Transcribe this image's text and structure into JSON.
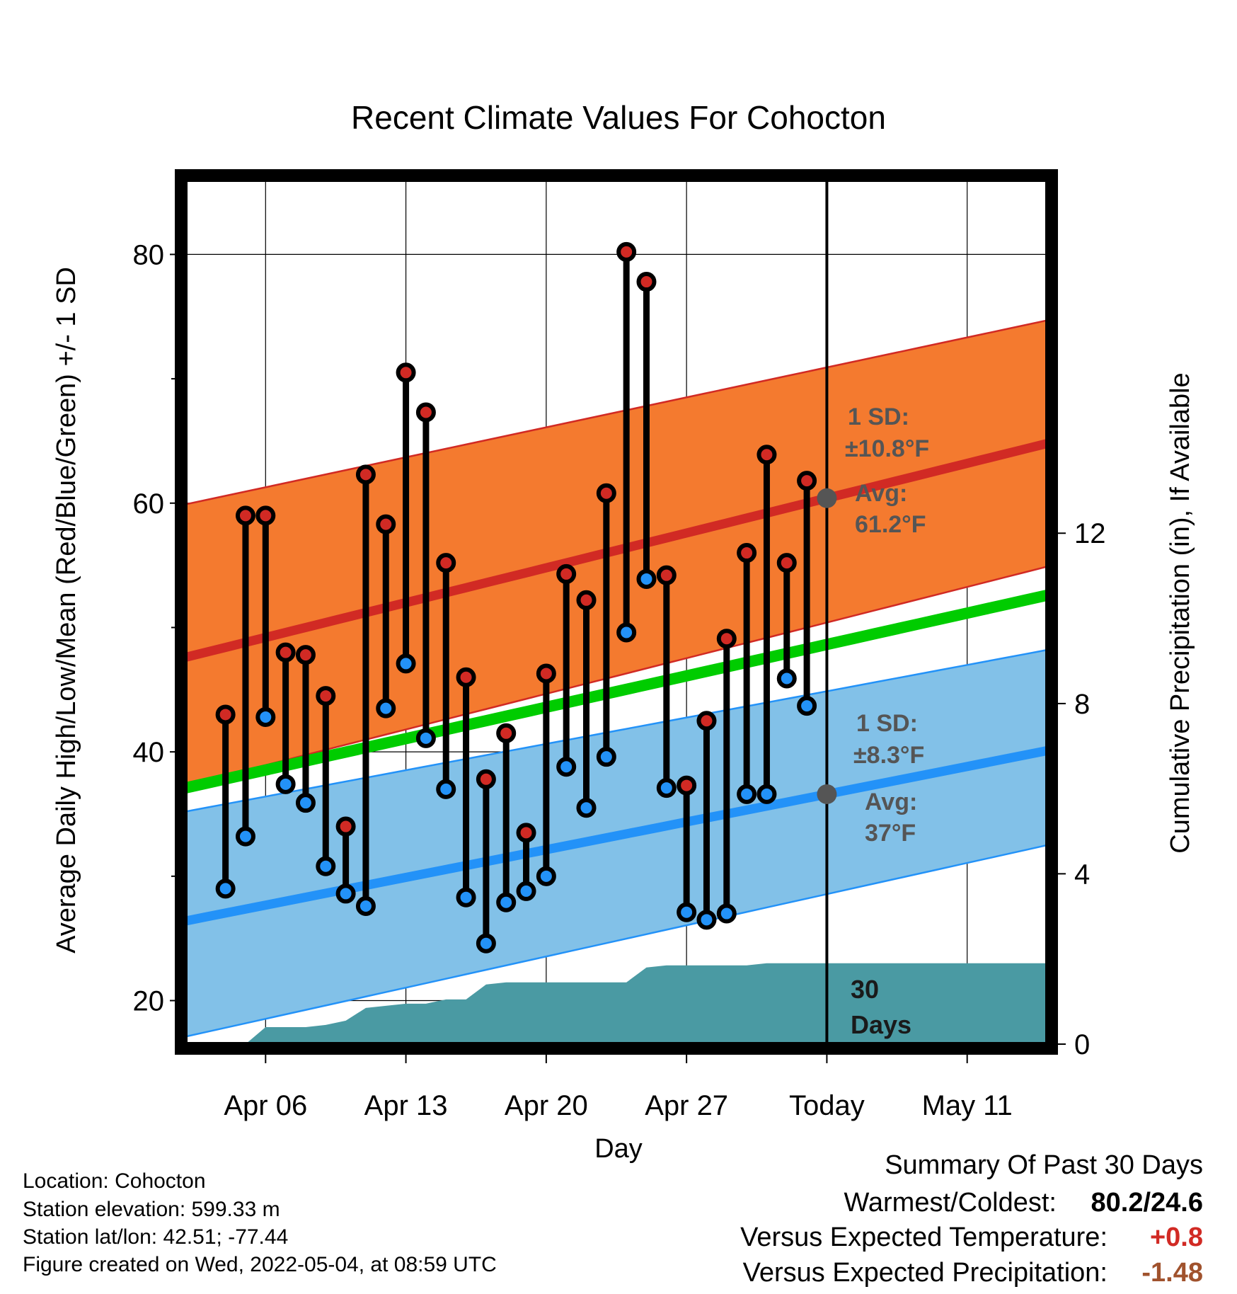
{
  "chart_data": {
    "type": "line",
    "title": "Recent Climate Values For Cohocton",
    "xlabel": "Day",
    "ylabel": "Average Daily High/Low/Mean (Red/Blue/Green) +/- 1 SD",
    "y2label": "Cumulative Precipitation (in), If Available",
    "ylim": [
      16.5,
      86
    ],
    "y2lim": [
      0,
      20.3
    ],
    "yticks": [
      20,
      40,
      60,
      80
    ],
    "y2ticks": [
      0,
      4,
      8,
      12
    ],
    "xlim": [
      "2022-04-02",
      "2022-05-15"
    ],
    "xticks": [
      {
        "date": "2022-04-06",
        "label": "Apr 06"
      },
      {
        "date": "2022-04-13",
        "label": "Apr 13"
      },
      {
        "date": "2022-04-20",
        "label": "Apr 20"
      },
      {
        "date": "2022-04-27",
        "label": "Apr 27"
      },
      {
        "date": "2022-05-04",
        "label": "Today"
      },
      {
        "date": "2022-05-11",
        "label": "May 11"
      }
    ],
    "today": "2022-05-04",
    "grid": true,
    "daily": {
      "dates": [
        "2022-04-04",
        "2022-04-05",
        "2022-04-06",
        "2022-04-07",
        "2022-04-08",
        "2022-04-09",
        "2022-04-10",
        "2022-04-11",
        "2022-04-12",
        "2022-04-13",
        "2022-04-14",
        "2022-04-15",
        "2022-04-16",
        "2022-04-17",
        "2022-04-18",
        "2022-04-19",
        "2022-04-20",
        "2022-04-21",
        "2022-04-22",
        "2022-04-23",
        "2022-04-24",
        "2022-04-25",
        "2022-04-26",
        "2022-04-27",
        "2022-04-28",
        "2022-04-29",
        "2022-04-30",
        "2022-05-01",
        "2022-05-02",
        "2022-05-03"
      ],
      "high": [
        43,
        59,
        59,
        48,
        47.8,
        44.5,
        34,
        62.3,
        58.3,
        70.5,
        67.3,
        55.2,
        46,
        37.8,
        41.5,
        33.5,
        46.3,
        54.3,
        52.2,
        60.8,
        80.2,
        77.8,
        54.2,
        37.3,
        42.5,
        49.1,
        56,
        63.9,
        55.2,
        61.8
      ],
      "low": [
        29,
        33.2,
        42.8,
        37.4,
        35.9,
        30.8,
        28.6,
        27.6,
        43.5,
        47.1,
        41.1,
        37,
        28.3,
        24.6,
        27.9,
        28.8,
        30,
        38.8,
        35.5,
        39.6,
        49.6,
        53.9,
        37.1,
        27.1,
        26.5,
        27,
        36.6,
        36.6,
        45.9,
        43.7
      ]
    },
    "normals": {
      "dates": [
        "2022-04-02",
        "2022-05-15"
      ],
      "high_mean": [
        47.6,
        64.8
      ],
      "high_sd_upper": [
        59.9,
        74.7
      ],
      "high_sd_lower": [
        37.3,
        54.9
      ],
      "low_mean": [
        26.4,
        40.1
      ],
      "low_sd_upper": [
        35.2,
        48.2
      ],
      "low_sd_lower": [
        17.1,
        32.5
      ],
      "mean": [
        37.1,
        52.6
      ]
    },
    "precipitation": {
      "dates": [
        "2022-04-04",
        "2022-04-05",
        "2022-04-06",
        "2022-04-07",
        "2022-04-08",
        "2022-04-09",
        "2022-04-10",
        "2022-04-11",
        "2022-04-12",
        "2022-04-13",
        "2022-04-14",
        "2022-04-15",
        "2022-04-16",
        "2022-04-17",
        "2022-04-18",
        "2022-04-19",
        "2022-04-20",
        "2022-04-21",
        "2022-04-22",
        "2022-04-23",
        "2022-04-24",
        "2022-04-25",
        "2022-04-26",
        "2022-04-27",
        "2022-04-28",
        "2022-04-29",
        "2022-04-30",
        "2022-05-01",
        "2022-05-02",
        "2022-05-03",
        "2022-05-04"
      ],
      "cumulative": [
        0,
        0,
        0.4,
        0.4,
        0.4,
        0.45,
        0.55,
        0.85,
        0.9,
        0.95,
        0.95,
        1.05,
        1.05,
        1.4,
        1.45,
        1.45,
        1.45,
        1.45,
        1.45,
        1.45,
        1.45,
        1.8,
        1.85,
        1.85,
        1.85,
        1.85,
        1.85,
        1.9,
        1.9,
        1.9,
        1.9
      ]
    },
    "annotations": {
      "high_sd": "1 SD:",
      "high_sd_value": "±10.8°F",
      "high_avg": "Avg:",
      "high_avg_value": "61.2°F",
      "low_sd": "1 SD:",
      "low_sd_value": "±8.3°F",
      "low_avg": "Avg:",
      "low_avg_value": "37°F",
      "precip_label_1": "30",
      "precip_label_2": "Days"
    },
    "colors": {
      "high_band": "#f47a2f",
      "high_line": "#d12a24",
      "low_band": "#82c1e8",
      "low_line": "#2392f8",
      "mean_line": "#00cc00",
      "precip": "#4a9aa3",
      "high_dot": "#d12a24",
      "low_dot": "#2392f8",
      "today_marker": "#555555"
    }
  },
  "info": {
    "location": "Location: Cohocton",
    "elevation": "Station elevation: 599.33 m",
    "latlon": "Station lat/lon: 42.51; -77.44",
    "created": "Figure created on Wed, 2022-05-04, at 08:59 UTC"
  },
  "summary": {
    "title": "Summary Of Past 30 Days",
    "warmest_label": "Warmest/Coldest:",
    "warmest_value": "80.2/24.6",
    "temp_label": "Versus Expected Temperature:",
    "temp_value": "+0.8",
    "temp_color": "#d12a24",
    "precip_label": "Versus Expected Precipitation:",
    "precip_value": "-1.48",
    "precip_color": "#a0522d"
  }
}
